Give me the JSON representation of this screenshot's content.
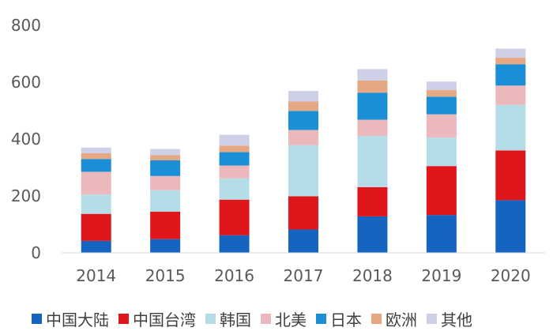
{
  "chart_data": {
    "type": "bar",
    "stacked": true,
    "title": "",
    "xlabel": "",
    "ylabel": "",
    "ylim": [
      0,
      800
    ],
    "yticks": [
      0,
      200,
      400,
      600,
      800
    ],
    "grid": false,
    "legend_position": "bottom",
    "categories": [
      "2014",
      "2015",
      "2016",
      "2017",
      "2018",
      "2019",
      "2020"
    ],
    "series": [
      {
        "name": "中国大陆",
        "color": "#1565c0",
        "values": [
          42,
          48,
          62,
          82,
          128,
          133,
          185
        ]
      },
      {
        "name": "中国台湾",
        "color": "#e0161d",
        "values": [
          95,
          97,
          125,
          117,
          103,
          172,
          175
        ]
      },
      {
        "name": "韩国",
        "color": "#b5dde8",
        "values": [
          68,
          75,
          75,
          180,
          180,
          100,
          160
        ]
      },
      {
        "name": "北美",
        "color": "#ebb9bc",
        "values": [
          80,
          50,
          45,
          53,
          57,
          82,
          68
        ]
      },
      {
        "name": "日本",
        "color": "#1b8fd6",
        "values": [
          45,
          55,
          47,
          67,
          95,
          62,
          75
        ]
      },
      {
        "name": "欧洲",
        "color": "#e6a882",
        "values": [
          20,
          18,
          23,
          33,
          43,
          23,
          23
        ]
      },
      {
        "name": "其他",
        "color": "#cdd0e6",
        "values": [
          20,
          22,
          38,
          37,
          40,
          30,
          32
        ]
      }
    ]
  }
}
